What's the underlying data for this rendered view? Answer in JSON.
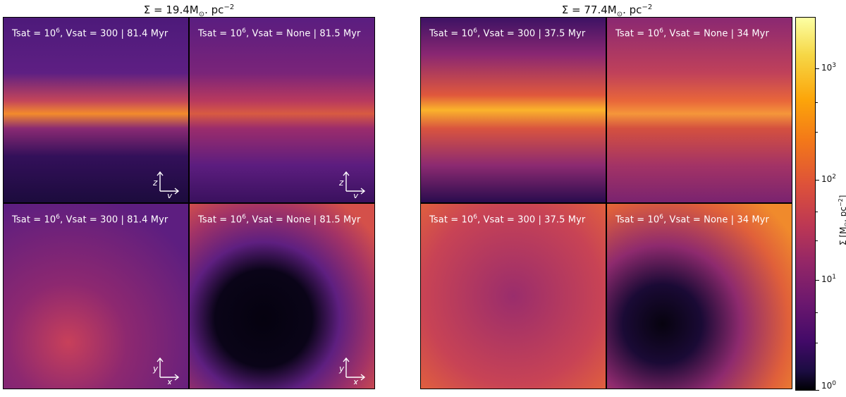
{
  "groups": [
    {
      "title_prefix": "Σ = 19.4M",
      "title_sub": "⊙",
      "title_mid": ". pc",
      "title_sup": "−2",
      "panels": [
        {
          "label_a": "Tsat = 10",
          "label_exp": "6",
          "label_b": ", Vsat = 300 | 81.4 Myr",
          "axis_v": "z",
          "axis_h": "y"
        },
        {
          "label_a": "Tsat = 10",
          "label_exp": "6",
          "label_b": ", Vsat = None | 81.5 Myr",
          "axis_v": "z",
          "axis_h": "y"
        },
        {
          "label_a": "Tsat = 10",
          "label_exp": "6",
          "label_b": ", Vsat = 300 | 81.4 Myr",
          "axis_v": "y",
          "axis_h": "x"
        },
        {
          "label_a": "Tsat = 10",
          "label_exp": "6",
          "label_b": ", Vsat = None | 81.5 Myr",
          "axis_v": "y",
          "axis_h": "x"
        }
      ]
    },
    {
      "title_prefix": "Σ = 77.4M",
      "title_sub": "⊙",
      "title_mid": ". pc",
      "title_sup": "−2",
      "panels": [
        {
          "label_a": "Tsat = 10",
          "label_exp": "6",
          "label_b": ", Vsat = 300 | 37.5 Myr",
          "axis_v": "",
          "axis_h": ""
        },
        {
          "label_a": "Tsat = 10",
          "label_exp": "6",
          "label_b": ", Vsat = None | 34 Myr",
          "axis_v": "",
          "axis_h": ""
        },
        {
          "label_a": "Tsat = 10",
          "label_exp": "6",
          "label_b": ", Vsat = 300 | 37.5 Myr",
          "axis_v": "",
          "axis_h": ""
        },
        {
          "label_a": "Tsat = 10",
          "label_exp": "6",
          "label_b": ", Vsat = None | 34 Myr",
          "axis_v": "",
          "axis_h": ""
        }
      ]
    }
  ],
  "colorbar": {
    "label_prefix": "Σ [M",
    "label_sub": "⊙",
    "label_mid": ". pc",
    "label_sup": "−2",
    "label_suffix": "]",
    "scale": "log",
    "range": [
      1,
      3000
    ],
    "colormap": "inferno",
    "ticks": [
      {
        "base": "10",
        "exp": "3"
      },
      {
        "base": "10",
        "exp": "2"
      },
      {
        "base": "10",
        "exp": "1"
      },
      {
        "base": "10",
        "exp": "0"
      }
    ]
  }
}
